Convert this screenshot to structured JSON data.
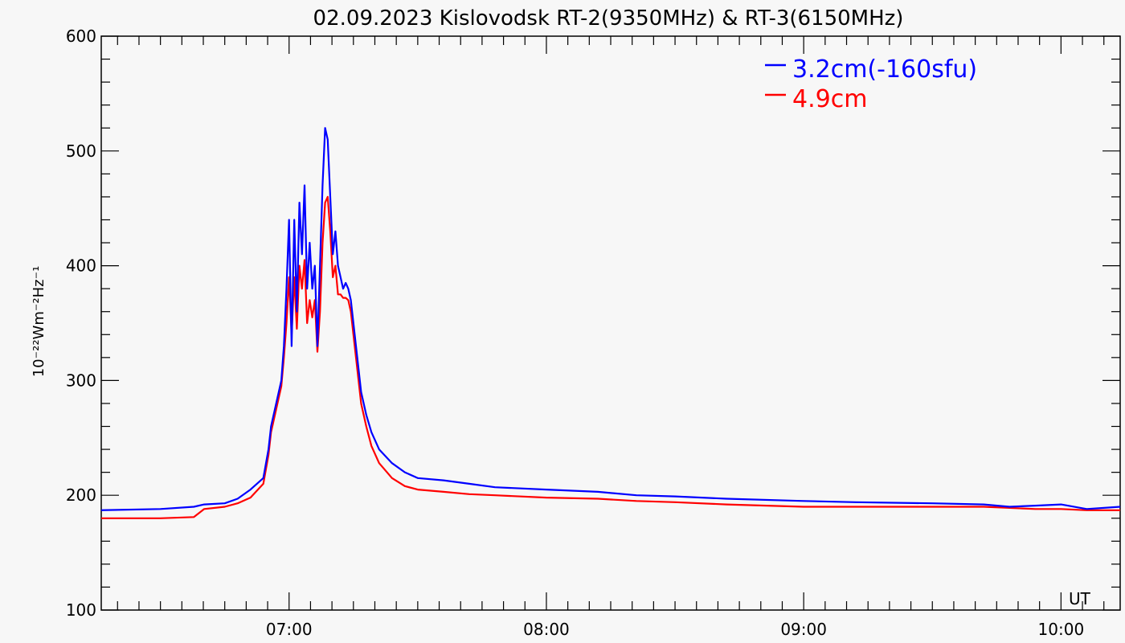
{
  "chart_data": {
    "type": "line",
    "title": "02.09.2023 Kislovodsk RT-2(9350MHz) & RT-3(6150MHz)",
    "ylabel": "10⁻²²Wm⁻²Hz⁻¹",
    "xlabel": "UT",
    "xlim": [
      6.27,
      10.23
    ],
    "ylim": [
      100,
      600
    ],
    "yticks": [
      100,
      200,
      300,
      400,
      500,
      600
    ],
    "xticks": [
      {
        "v": 7.0,
        "label": "07:00"
      },
      {
        "v": 8.0,
        "label": "08:00"
      },
      {
        "v": 9.0,
        "label": "09:00"
      },
      {
        "v": 10.0,
        "label": "10:00"
      }
    ],
    "legend_position": "top-right",
    "series": [
      {
        "name": "3.2cm(-160sfu)",
        "color": "#0000ff",
        "x": [
          6.27,
          6.5,
          6.63,
          6.67,
          6.75,
          6.8,
          6.85,
          6.9,
          6.92,
          6.93,
          6.95,
          6.97,
          6.98,
          6.99,
          7.0,
          7.01,
          7.02,
          7.03,
          7.04,
          7.05,
          7.06,
          7.07,
          7.08,
          7.09,
          7.1,
          7.11,
          7.12,
          7.13,
          7.14,
          7.15,
          7.16,
          7.17,
          7.18,
          7.19,
          7.2,
          7.21,
          7.22,
          7.23,
          7.24,
          7.25,
          7.26,
          7.27,
          7.28,
          7.3,
          7.32,
          7.35,
          7.4,
          7.45,
          7.5,
          7.6,
          7.7,
          7.8,
          8.0,
          8.2,
          8.35,
          8.5,
          8.7,
          9.0,
          9.2,
          9.5,
          9.7,
          9.8,
          9.9,
          10.0,
          10.1,
          10.23
        ],
        "y": [
          187,
          188,
          190,
          192,
          193,
          197,
          205,
          215,
          240,
          260,
          280,
          300,
          330,
          380,
          440,
          330,
          440,
          360,
          455,
          410,
          470,
          380,
          420,
          380,
          400,
          330,
          400,
          470,
          520,
          510,
          460,
          410,
          430,
          400,
          390,
          380,
          385,
          380,
          370,
          350,
          330,
          310,
          290,
          270,
          255,
          240,
          228,
          220,
          215,
          213,
          210,
          207,
          205,
          203,
          200,
          199,
          197,
          195,
          194,
          193,
          192,
          190,
          191,
          192,
          188,
          190
        ]
      },
      {
        "name": "4.9cm",
        "color": "#ff0000",
        "x": [
          6.27,
          6.5,
          6.63,
          6.67,
          6.75,
          6.8,
          6.85,
          6.9,
          6.92,
          6.93,
          6.95,
          6.97,
          6.98,
          6.99,
          7.0,
          7.01,
          7.02,
          7.03,
          7.04,
          7.05,
          7.06,
          7.07,
          7.08,
          7.09,
          7.1,
          7.11,
          7.12,
          7.13,
          7.14,
          7.15,
          7.16,
          7.17,
          7.18,
          7.19,
          7.2,
          7.21,
          7.22,
          7.23,
          7.24,
          7.25,
          7.26,
          7.27,
          7.28,
          7.3,
          7.32,
          7.35,
          7.4,
          7.45,
          7.5,
          7.6,
          7.7,
          7.8,
          8.0,
          8.2,
          8.35,
          8.5,
          8.7,
          9.0,
          9.2,
          9.5,
          9.7,
          9.8,
          9.9,
          10.0,
          10.1,
          10.23
        ],
        "y": [
          180,
          180,
          181,
          188,
          190,
          193,
          198,
          210,
          235,
          255,
          275,
          295,
          320,
          350,
          390,
          340,
          390,
          345,
          400,
          380,
          405,
          350,
          370,
          355,
          370,
          325,
          360,
          420,
          455,
          460,
          430,
          390,
          400,
          375,
          375,
          372,
          372,
          370,
          360,
          340,
          320,
          300,
          280,
          260,
          243,
          228,
          215,
          208,
          205,
          203,
          201,
          200,
          198,
          197,
          195,
          194,
          192,
          190,
          190,
          190,
          190,
          189,
          188,
          188,
          187,
          187
        ]
      }
    ]
  }
}
